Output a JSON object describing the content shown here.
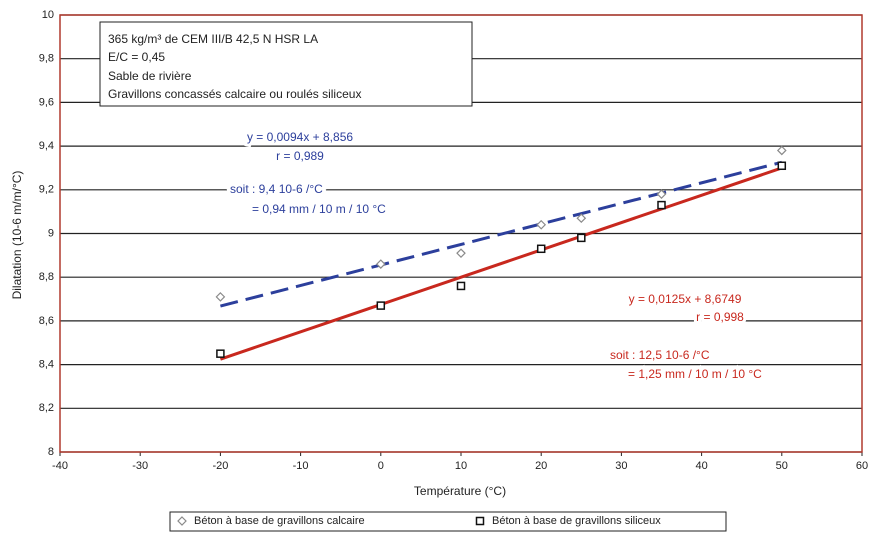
{
  "chart_data": {
    "type": "scatter",
    "x_label": "Température (°C)",
    "y_label": "Dilatation (10-6 m/m/°C)",
    "x": [
      -20,
      0,
      10,
      20,
      25,
      35,
      50
    ],
    "series": [
      {
        "name": "Béton à base de gravillons calcaire",
        "color": "#8a8a8a",
        "marker": "diamond",
        "values": [
          8.71,
          8.86,
          8.91,
          9.04,
          9.07,
          9.18,
          9.38
        ],
        "trend": {
          "color": "#2c3f9c",
          "dash": true,
          "x": [
            -20,
            50
          ],
          "y": [
            8.668,
            9.326
          ]
        }
      },
      {
        "name": "Béton à base de gravillons siliceux",
        "color": "#111111",
        "marker": "square",
        "values": [
          8.45,
          8.67,
          8.76,
          8.93,
          8.98,
          9.13,
          9.31
        ],
        "trend": {
          "color": "#c8281e",
          "dash": false,
          "x": [
            -20,
            50
          ],
          "y": [
            8.4249,
            9.2999
          ]
        }
      }
    ],
    "xlim": [
      -40,
      60
    ],
    "ylim": [
      8,
      10
    ],
    "xticks": [
      -40,
      -30,
      -20,
      -10,
      0,
      10,
      20,
      30,
      40,
      50,
      60
    ],
    "yticks": [
      8,
      {
        "value": 8.2,
        "label": "8,2"
      },
      {
        "value": 8.4,
        "label": "8,4"
      },
      {
        "value": 8.6,
        "label": "8,6"
      },
      {
        "value": 8.8,
        "label": "8,8"
      },
      9,
      {
        "value": 9.2,
        "label": "9,2"
      },
      {
        "value": 9.4,
        "label": "9,4"
      },
      {
        "value": 9.6,
        "label": "9,6"
      },
      {
        "value": 9.8,
        "label": "9,8"
      },
      10
    ],
    "grid": true,
    "annotations": [
      {
        "text": "365 kg/m³ de CEM III/B 42,5 N HSR LA"
      },
      {
        "text": "E/C = 0,45"
      },
      {
        "text": "Sable de rivière"
      },
      {
        "text": "Gravillons concassés calcaire ou roulés siliceux"
      },
      {
        "text": "y = 0,0094x + 8,856"
      },
      {
        "text": "r = 0,989"
      },
      {
        "text": "soit : 9,4 10-6 /°C"
      },
      {
        "text": "= 0,94 mm / 10 m / 10 °C"
      },
      {
        "text": "y = 0,0125x + 8,6749"
      },
      {
        "text": "r = 0,998"
      },
      {
        "text": "soit : 12,5 10-6 /°C"
      },
      {
        "text": "= 1,25 mm / 10 m / 10 °C"
      }
    ]
  }
}
